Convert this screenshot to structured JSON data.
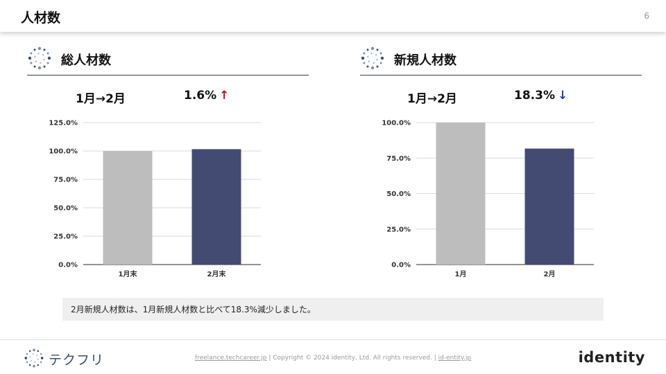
{
  "header": {
    "title": "人材数",
    "page_number": "6"
  },
  "panels": [
    {
      "title": "総人材数",
      "period": "1月→2月",
      "change_value": "1.6%",
      "change_direction": "up",
      "arrow": "↑",
      "arrow_color": "#d0021b"
    },
    {
      "title": "新規人材数",
      "period": "1月→2月",
      "change_value": "18.3%",
      "change_direction": "down",
      "arrow": "↓",
      "arrow_color": "#1f3f9e"
    }
  ],
  "chart_data": [
    {
      "type": "bar",
      "categories": [
        "1月末",
        "2月末"
      ],
      "values": [
        100.0,
        101.6
      ],
      "bar_colors": [
        "#bdbdbd",
        "#434b73"
      ],
      "ylim": [
        0,
        125
      ],
      "yticks": [
        0,
        25,
        50,
        75,
        100,
        125
      ],
      "ytick_labels": [
        "0.0%",
        "25.0%",
        "50.0%",
        "75.0%",
        "100.0%",
        "125.0%"
      ],
      "grid": true
    },
    {
      "type": "bar",
      "categories": [
        "1月",
        "2月"
      ],
      "values": [
        100.0,
        81.7
      ],
      "bar_colors": [
        "#bdbdbd",
        "#434b73"
      ],
      "ylim": [
        0,
        100
      ],
      "yticks": [
        0,
        25,
        50,
        75,
        100
      ],
      "ytick_labels": [
        "0.0%",
        "25.0%",
        "50.0%",
        "75.0%",
        "100.0%"
      ],
      "grid": true
    }
  ],
  "note": "2月新規人材数は、1月新規人材数と比べて18.3%減少しました。",
  "footer": {
    "brand": "テクフリ",
    "link1": "freelance.techcareer.jp",
    "separator": "|",
    "copyright": "Copyright © 2024 identity, Ltd. All rights reserved.",
    "link2": "id-entity.jp",
    "company_logo": "identity"
  },
  "colors": {
    "accent": "#434b73",
    "neutral_bar": "#bdbdbd",
    "up": "#d0021b",
    "down": "#1f3f9e"
  }
}
